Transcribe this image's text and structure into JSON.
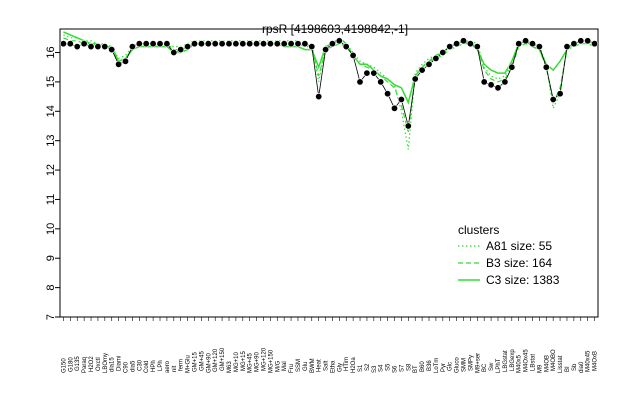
{
  "chart_data": {
    "type": "line",
    "title": "rpsR [4198603,4198842,-1]",
    "xlabel": "",
    "ylabel": "",
    "ylim": [
      7,
      16.8
    ],
    "yticks": [
      7,
      8,
      9,
      10,
      11,
      12,
      13,
      14,
      15,
      16
    ],
    "grid": false,
    "legend": {
      "title": "clusters",
      "position": "right",
      "entries": [
        {
          "label": "A81 size: 55",
          "style": "dotted"
        },
        {
          "label": "B3 size: 164",
          "style": "dashed"
        },
        {
          "label": "C3 size: 1383",
          "style": "solid"
        }
      ]
    },
    "x_tick_labels": [
      "G150",
      "G180",
      "G135",
      "Paraq",
      "H2O2",
      "Oxctl",
      "LBOmy",
      "dia15",
      "Diami",
      "C90",
      "dia5",
      "C30",
      "Cold",
      "HPh",
      "LPh",
      "aero",
      "nit",
      "ferm",
      "M+Glu",
      "GM+15",
      "GM+45",
      "GM+90",
      "GM+120",
      "GM+150",
      "M63",
      "MG+10",
      "MG+15",
      "MG+45",
      "MG+90",
      "MG+120",
      "MG+150",
      "M/G",
      "Mal",
      "Fru",
      "SSM",
      "Glu",
      "BWM",
      "Heat",
      "Salt",
      "Etha",
      "Gly",
      "HTim",
      "H2Oa",
      "S1",
      "S2",
      "S3",
      "S4",
      "S5",
      "S6",
      "S7",
      "S8",
      "BT",
      "B60",
      "B36",
      "LoTm",
      "Pyr",
      "Glc",
      "Gluco",
      "SMM",
      "SMPy",
      "M9+ser",
      "BC",
      "Sw",
      "LPhT",
      "LBGstat",
      "LBGexp",
      "M40x5",
      "M4Ox45",
      "LBstat",
      "M9",
      "M4OB",
      "M4OBO",
      "Lisstat",
      "BI",
      "Sb",
      "dia0",
      "M40x45",
      "M4OxB"
    ],
    "x": [
      1,
      2,
      3,
      4,
      5,
      6,
      7,
      8,
      9,
      10,
      11,
      12,
      13,
      14,
      15,
      16,
      17,
      18,
      19,
      20,
      21,
      22,
      23,
      24,
      25,
      26,
      27,
      28,
      29,
      30,
      31,
      32,
      33,
      34,
      35,
      36,
      37,
      38,
      39,
      40,
      41,
      42,
      43,
      44,
      45,
      46,
      47,
      48,
      49,
      50,
      51,
      52,
      53,
      54,
      55,
      56,
      57,
      58,
      59,
      60,
      61,
      62,
      63,
      64,
      65,
      66,
      67,
      68,
      69,
      70,
      71,
      72,
      73,
      74,
      75,
      76,
      77,
      78
    ],
    "series": [
      {
        "name": "A81 size: 55",
        "style": "dotted",
        "values": [
          16.6,
          16.5,
          16.5,
          16.4,
          16.4,
          16.3,
          16.3,
          16.2,
          15.8,
          15.9,
          16.2,
          16.3,
          16.3,
          16.3,
          16.3,
          16.3,
          16.2,
          16.2,
          16.3,
          16.4,
          16.4,
          16.4,
          16.4,
          16.4,
          16.4,
          16.4,
          16.4,
          16.4,
          16.4,
          16.4,
          16.4,
          16.4,
          16.4,
          16.4,
          16.4,
          16.3,
          16.3,
          15.0,
          16.2,
          16.3,
          16.4,
          16.3,
          16.0,
          15.7,
          15.6,
          15.5,
          15.3,
          15.1,
          14.9,
          14.0,
          12.7,
          15.3,
          15.6,
          15.8,
          15.9,
          16.0,
          16.2,
          16.3,
          16.4,
          16.4,
          16.3,
          15.5,
          15.2,
          15.1,
          15.2,
          15.6,
          16.3,
          16.4,
          16.3,
          16.2,
          15.6,
          14.1,
          14.6,
          16.2,
          16.3,
          16.4,
          16.4,
          16.3
        ]
      },
      {
        "name": "B3 size: 164",
        "style": "dashed",
        "values": [
          16.5,
          16.4,
          16.4,
          16.3,
          16.3,
          16.2,
          16.2,
          16.1,
          15.7,
          15.8,
          16.1,
          16.2,
          16.3,
          16.2,
          16.3,
          16.3,
          16.1,
          16.1,
          16.2,
          16.3,
          16.3,
          16.3,
          16.3,
          16.3,
          16.3,
          16.3,
          16.3,
          16.3,
          16.3,
          16.3,
          16.3,
          16.3,
          16.3,
          16.3,
          16.3,
          16.2,
          16.2,
          15.2,
          16.1,
          16.2,
          16.3,
          16.2,
          15.9,
          15.6,
          15.5,
          15.4,
          15.2,
          15.0,
          14.8,
          14.2,
          13.3,
          15.2,
          15.5,
          15.7,
          15.8,
          15.9,
          16.1,
          16.2,
          16.3,
          16.3,
          16.2,
          15.4,
          15.1,
          15.0,
          15.1,
          15.5,
          16.2,
          16.3,
          16.2,
          16.1,
          15.5,
          14.3,
          14.8,
          16.1,
          16.2,
          16.3,
          16.3,
          16.2
        ]
      },
      {
        "name": "C3 size: 1383",
        "style": "solid",
        "values": [
          16.7,
          16.6,
          16.5,
          16.4,
          16.3,
          16.3,
          16.2,
          16.2,
          15.7,
          15.8,
          16.1,
          16.2,
          16.2,
          16.2,
          16.2,
          16.2,
          16.0,
          16.0,
          16.1,
          16.3,
          16.3,
          16.3,
          16.3,
          16.3,
          16.3,
          16.3,
          16.3,
          16.3,
          16.3,
          16.3,
          16.3,
          16.3,
          16.2,
          16.2,
          16.2,
          16.1,
          16.1,
          15.5,
          16.2,
          16.3,
          16.5,
          16.3,
          15.9,
          15.6,
          15.6,
          15.4,
          15.2,
          15.1,
          14.9,
          14.8,
          14.3,
          15.2,
          15.5,
          15.7,
          15.9,
          16.0,
          16.2,
          16.3,
          16.4,
          16.3,
          16.1,
          15.6,
          15.4,
          15.3,
          15.3,
          15.7,
          16.3,
          16.4,
          16.2,
          16.1,
          15.6,
          15.4,
          15.7,
          16.1,
          16.3,
          16.4,
          16.4,
          16.3
        ]
      },
      {
        "name": "",
        "style": "points",
        "values": [
          16.3,
          16.3,
          16.2,
          16.3,
          16.2,
          16.2,
          16.2,
          16.1,
          15.6,
          15.7,
          16.2,
          16.3,
          16.3,
          16.3,
          16.3,
          16.3,
          16.0,
          16.1,
          16.2,
          16.3,
          16.3,
          16.3,
          16.3,
          16.3,
          16.3,
          16.3,
          16.3,
          16.3,
          16.3,
          16.3,
          16.3,
          16.3,
          16.3,
          16.3,
          16.3,
          16.3,
          16.2,
          14.5,
          16.1,
          16.3,
          16.4,
          16.2,
          15.9,
          15.0,
          15.3,
          15.3,
          15.0,
          14.6,
          14.1,
          14.4,
          13.5,
          15.1,
          15.4,
          15.6,
          15.8,
          16.0,
          16.2,
          16.3,
          16.4,
          16.3,
          16.2,
          15.0,
          14.9,
          14.8,
          15.0,
          15.5,
          16.3,
          16.4,
          16.3,
          16.2,
          15.5,
          14.4,
          14.6,
          16.2,
          16.3,
          16.4,
          16.4,
          16.3
        ]
      }
    ]
  }
}
